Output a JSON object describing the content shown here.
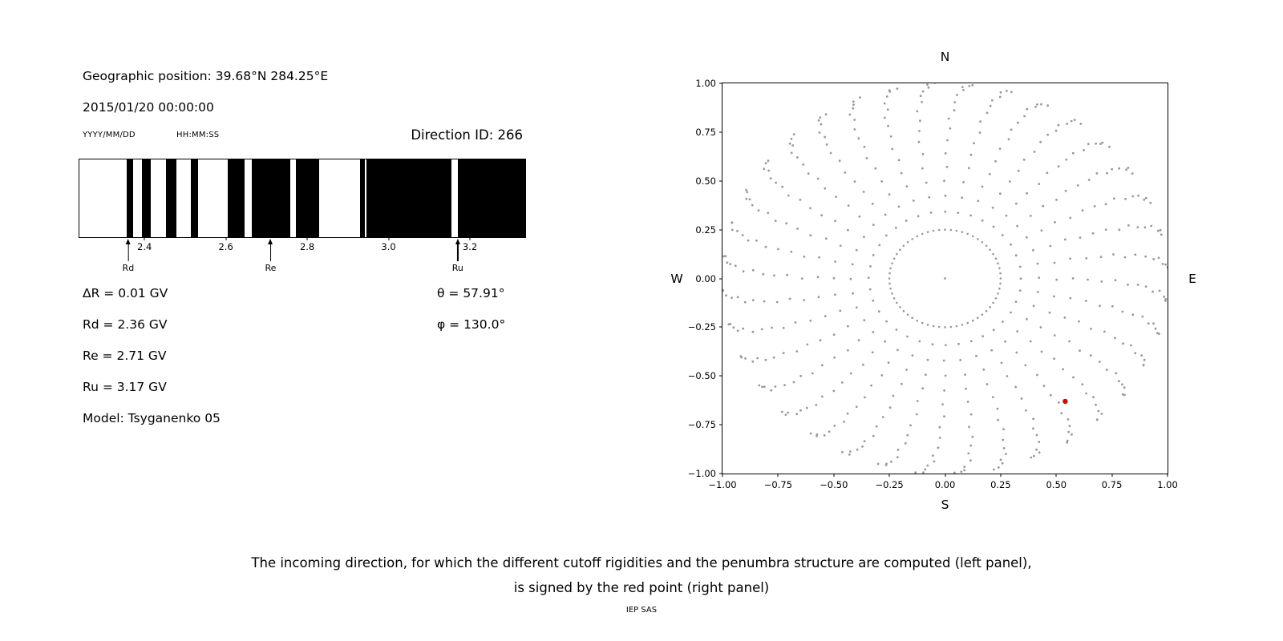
{
  "header": {
    "geo_position": "Geographic position: 39.68°N 284.25°E",
    "datetime": "2015/01/20 00:00:00",
    "date_format_hint": "YYYY/MM/DD",
    "time_format_hint": "HH:MM:SS",
    "direction_id_label": "Direction ID: 266"
  },
  "cutoff_info": {
    "delta_r": "ΔR = 0.01 GV",
    "rd": "Rd = 2.36 GV",
    "re": "Re = 2.71 GV",
    "ru": "Ru = 3.17 GV",
    "model": "Model: Tsyganenko 05",
    "theta": "θ = 57.91°",
    "phi": "φ = 130.0°"
  },
  "caption": {
    "line1": "The incoming direction, for which the different cutoff rigidities and the penumbra structure are computed (left panel),",
    "line2": "is signed by the red point (right panel)",
    "credit": "IEP SAS"
  },
  "chart_data": [
    {
      "type": "bar",
      "name": "penumbra-structure",
      "x_range": [
        2.238,
        3.334
      ],
      "x_ticks": [
        2.4,
        2.6,
        2.8,
        3.0,
        3.2
      ],
      "x_tick_labels": [
        "2.4",
        "2.6",
        "2.8",
        "3.0",
        "3.2"
      ],
      "allowed_color": "#ffffff",
      "forbidden_color": "#000000",
      "forbidden_bands_gv": [
        [
          2.354,
          2.371
        ],
        [
          2.392,
          2.413
        ],
        [
          2.45,
          2.476
        ],
        [
          2.512,
          2.53
        ],
        [
          2.603,
          2.645
        ],
        [
          2.662,
          2.757
        ],
        [
          2.77,
          2.827
        ],
        [
          2.928,
          2.939
        ],
        [
          2.944,
          3.152
        ],
        [
          3.168,
          3.334
        ]
      ],
      "annotations": [
        {
          "label": "Rd",
          "x": 2.36
        },
        {
          "label": "Re",
          "x": 2.71
        },
        {
          "label": "Ru",
          "x": 3.17
        }
      ]
    },
    {
      "type": "scatter",
      "name": "incoming-direction-map",
      "x_range": [
        -1.0,
        1.0
      ],
      "y_range": [
        -1.0,
        1.0
      ],
      "x_ticks": [
        -1.0,
        -0.75,
        -0.5,
        -0.25,
        0.0,
        0.25,
        0.5,
        0.75,
        1.0
      ],
      "x_tick_labels": [
        "−1.00",
        "−0.75",
        "−0.50",
        "−0.25",
        "0.00",
        "0.25",
        "0.50",
        "0.75",
        "1.00"
      ],
      "y_ticks": [
        1.0,
        0.75,
        0.5,
        0.25,
        0.0,
        -0.25,
        -0.5,
        -0.75,
        -1.0
      ],
      "y_tick_labels": [
        "1.00",
        "0.75",
        "0.50",
        "0.25",
        "0.00",
        "−0.25",
        "−0.50",
        "−0.75",
        "−1.00"
      ],
      "compass": {
        "top": "N",
        "bottom": "S",
        "left": "W",
        "right": "E"
      },
      "grid_dots": {
        "azimuth_count": 36,
        "azimuth_step_deg": 10,
        "zenith_start_deg": 20,
        "zenith_end_deg": 90,
        "zenith_step_deg": 5,
        "radius": "sin(zenith)",
        "curvature_deg": 7,
        "inner_ring_radius": 0.25,
        "inner_ring_points": 60,
        "center_dot": true,
        "color": "#999999"
      },
      "highlight_point": {
        "x": 0.54,
        "y": -0.63,
        "color": "#e00000"
      }
    }
  ]
}
